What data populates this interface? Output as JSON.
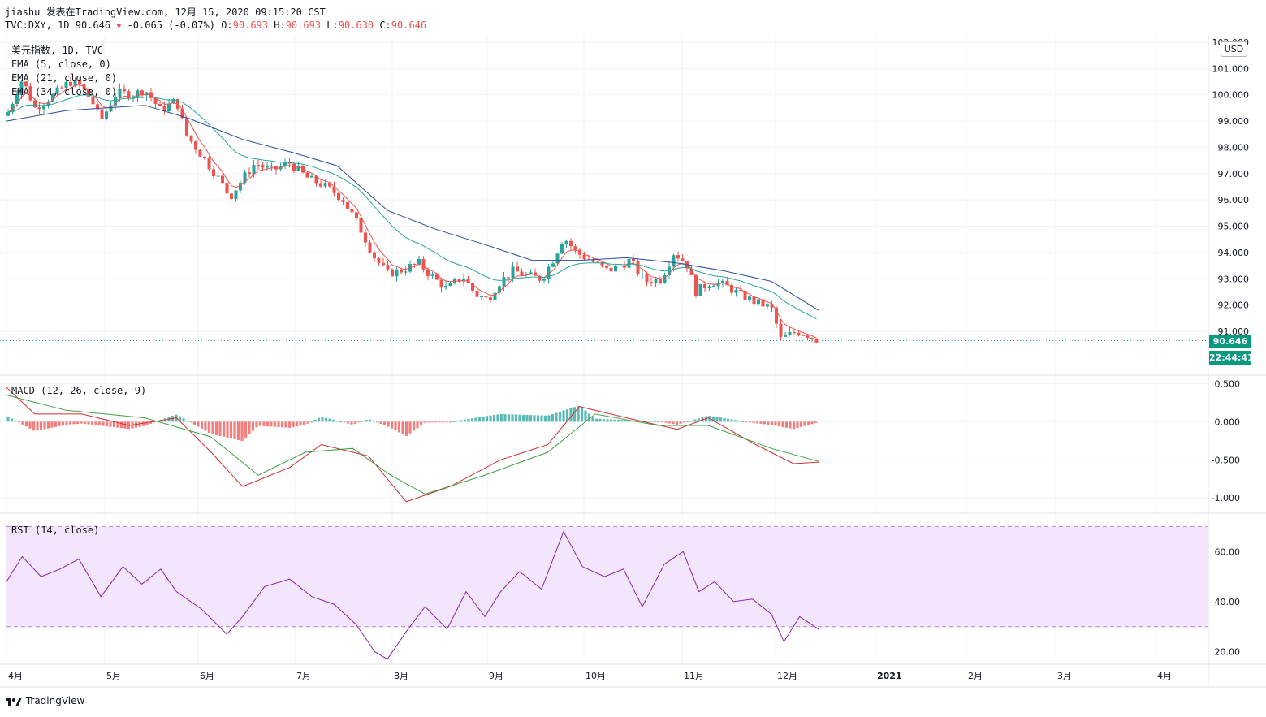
{
  "header": {
    "user": "jiashu",
    "published_on": "发表在TradingView.com, 12月 15, 2020 09:15:20 CST",
    "symbol": "TVC:DXY, 1D",
    "last": "90.646",
    "change": "-0.065 (-0.07%)",
    "o_label": "O:",
    "o": "90.693",
    "h_label": "H:",
    "h": "90.693",
    "l_label": "L:",
    "l": "90.630",
    "c_label": "C:",
    "c": "90.646"
  },
  "legend": {
    "title": "美元指数, 1D, TVC",
    "ema5": "EMA (5, close, 0)",
    "ema21": "EMA (21, close, 0)",
    "ema34": "EMA (34, close, 0)",
    "macd": "MACD (12, 26, close, 9)",
    "rsi": "RSI (14, close)"
  },
  "currency_button": "USD",
  "last_price_tag": "90.646",
  "countdown_tag": "22:44:41",
  "branding": "TradingView",
  "colors": {
    "up": "#26a69a",
    "down": "#ef5350",
    "ema5": "#ef5350",
    "ema21": "#26a69a",
    "ema34": "#2a4d9b",
    "macd_line": "#d32f2f",
    "signal_line": "#43a047",
    "rsi": "#8e24aa",
    "rsi_band": "#f3e5fc"
  },
  "chart_data": [
    {
      "type": "candlestick",
      "title": "美元指数, 1D, TVC",
      "x_tick_labels": [
        "4月",
        "5月",
        "6月",
        "7月",
        "8月",
        "9月",
        "10月",
        "11月",
        "12月",
        "2021",
        "2月",
        "3月",
        "4月"
      ],
      "y_tick_labels": [
        "102.000",
        "101.000",
        "100.000",
        "99.000",
        "98.000",
        "97.000",
        "96.000",
        "95.000",
        "94.000",
        "93.000",
        "92.000",
        "91.000"
      ],
      "ylim": [
        90.3,
        102.0
      ],
      "x_range": [
        "2020-04-01",
        "2020-12-15"
      ],
      "close_path": [
        [
          "2020-04-01",
          99.2
        ],
        [
          "2020-04-06",
          100.6
        ],
        [
          "2020-04-10",
          99.5
        ],
        [
          "2020-04-15",
          99.9
        ],
        [
          "2020-04-21",
          100.5
        ],
        [
          "2020-04-24",
          100.4
        ],
        [
          "2020-04-28",
          99.8
        ],
        [
          "2020-05-01",
          99.0
        ],
        [
          "2020-05-06",
          100.1
        ],
        [
          "2020-05-11",
          100.0
        ],
        [
          "2020-05-15",
          100.2
        ],
        [
          "2020-05-20",
          99.4
        ],
        [
          "2020-05-25",
          99.8
        ],
        [
          "2020-05-28",
          98.5
        ],
        [
          "2020-06-02",
          97.7
        ],
        [
          "2020-06-08",
          96.7
        ],
        [
          "2020-06-11",
          96.1
        ],
        [
          "2020-06-15",
          96.8
        ],
        [
          "2020-06-19",
          97.4
        ],
        [
          "2020-06-24",
          97.1
        ],
        [
          "2020-06-30",
          97.4
        ],
        [
          "2020-07-06",
          96.8
        ],
        [
          "2020-07-10",
          96.6
        ],
        [
          "2020-07-14",
          96.3
        ],
        [
          "2020-07-17",
          96.0
        ],
        [
          "2020-07-22",
          95.0
        ],
        [
          "2020-07-27",
          93.8
        ],
        [
          "2020-07-31",
          93.2
        ],
        [
          "2020-08-04",
          93.3
        ],
        [
          "2020-08-10",
          93.6
        ],
        [
          "2020-08-14",
          93.1
        ],
        [
          "2020-08-19",
          92.6
        ],
        [
          "2020-08-24",
          93.1
        ],
        [
          "2020-08-28",
          92.4
        ],
        [
          "2020-09-01",
          92.2
        ],
        [
          "2020-09-04",
          92.8
        ],
        [
          "2020-09-09",
          93.3
        ],
        [
          "2020-09-14",
          93.1
        ],
        [
          "2020-09-18",
          93.0
        ],
        [
          "2020-09-22",
          93.8
        ],
        [
          "2020-09-25",
          94.6
        ],
        [
          "2020-09-29",
          94.0
        ],
        [
          "2020-10-05",
          93.6
        ],
        [
          "2020-10-09",
          93.3
        ],
        [
          "2020-10-13",
          93.5
        ],
        [
          "2020-10-16",
          93.7
        ],
        [
          "2020-10-21",
          92.9
        ],
        [
          "2020-10-26",
          93.0
        ],
        [
          "2020-10-30",
          94.0
        ],
        [
          "2020-11-03",
          93.6
        ],
        [
          "2020-11-06",
          92.5
        ],
        [
          "2020-11-11",
          92.9
        ],
        [
          "2020-11-16",
          92.7
        ],
        [
          "2020-11-20",
          92.4
        ],
        [
          "2020-11-25",
          92.1
        ],
        [
          "2020-11-30",
          91.9
        ],
        [
          "2020-12-03",
          90.7
        ],
        [
          "2020-12-08",
          91.0
        ],
        [
          "2020-12-11",
          90.9
        ],
        [
          "2020-12-15",
          90.646
        ]
      ],
      "ema34_path": [
        [
          "2020-04-01",
          99.0
        ],
        [
          "2020-04-20",
          99.4
        ],
        [
          "2020-05-15",
          99.6
        ],
        [
          "2020-05-29",
          99.1
        ],
        [
          "2020-06-15",
          98.3
        ],
        [
          "2020-07-01",
          97.8
        ],
        [
          "2020-07-15",
          97.3
        ],
        [
          "2020-07-31",
          95.6
        ],
        [
          "2020-08-15",
          94.9
        ],
        [
          "2020-08-31",
          94.3
        ],
        [
          "2020-09-15",
          93.7
        ],
        [
          "2020-09-30",
          93.7
        ],
        [
          "2020-10-15",
          93.8
        ],
        [
          "2020-10-31",
          93.6
        ],
        [
          "2020-11-15",
          93.3
        ],
        [
          "2020-11-30",
          92.9
        ],
        [
          "2020-12-15",
          91.8
        ]
      ]
    },
    {
      "type": "line",
      "title": "MACD (12, 26, close, 9)",
      "y_tick_labels": [
        "0.500",
        "0.000",
        "-0.500",
        "-1.000"
      ],
      "ylim": [
        -1.2,
        0.6
      ],
      "series": [
        {
          "name": "MACD",
          "points": [
            [
              "2020-04-01",
              0.45
            ],
            [
              "2020-04-10",
              0.1
            ],
            [
              "2020-04-25",
              0.1
            ],
            [
              "2020-05-10",
              -0.05
            ],
            [
              "2020-05-25",
              0.05
            ],
            [
              "2020-06-05",
              -0.4
            ],
            [
              "2020-06-15",
              -0.85
            ],
            [
              "2020-06-30",
              -0.6
            ],
            [
              "2020-07-10",
              -0.3
            ],
            [
              "2020-07-25",
              -0.45
            ],
            [
              "2020-08-06",
              -1.05
            ],
            [
              "2020-08-20",
              -0.85
            ],
            [
              "2020-09-05",
              -0.5
            ],
            [
              "2020-09-20",
              -0.3
            ],
            [
              "2020-09-30",
              0.2
            ],
            [
              "2020-10-15",
              0.05
            ],
            [
              "2020-10-31",
              -0.1
            ],
            [
              "2020-11-10",
              0.05
            ],
            [
              "2020-11-25",
              -0.3
            ],
            [
              "2020-12-07",
              -0.55
            ],
            [
              "2020-12-15",
              -0.53
            ]
          ]
        },
        {
          "name": "Signal",
          "points": [
            [
              "2020-04-01",
              0.35
            ],
            [
              "2020-04-20",
              0.15
            ],
            [
              "2020-05-15",
              0.05
            ],
            [
              "2020-06-05",
              -0.2
            ],
            [
              "2020-06-20",
              -0.7
            ],
            [
              "2020-07-05",
              -0.4
            ],
            [
              "2020-07-20",
              -0.35
            ],
            [
              "2020-08-01",
              -0.7
            ],
            [
              "2020-08-12",
              -0.95
            ],
            [
              "2020-08-31",
              -0.7
            ],
            [
              "2020-09-20",
              -0.4
            ],
            [
              "2020-10-05",
              0.1
            ],
            [
              "2020-10-25",
              -0.05
            ],
            [
              "2020-11-10",
              -0.05
            ],
            [
              "2020-11-30",
              -0.35
            ],
            [
              "2020-12-15",
              -0.52
            ]
          ]
        }
      ]
    },
    {
      "type": "line",
      "title": "RSI (14, close)",
      "y_tick_labels": [
        "60.00",
        "40.00",
        "20.00"
      ],
      "ylim": [
        15,
        75
      ],
      "band": [
        30,
        70
      ],
      "series": [
        {
          "name": "RSI",
          "points": [
            [
              "2020-04-01",
              48
            ],
            [
              "2020-04-06",
              58
            ],
            [
              "2020-04-12",
              50
            ],
            [
              "2020-04-18",
              53
            ],
            [
              "2020-04-24",
              57
            ],
            [
              "2020-05-01",
              42
            ],
            [
              "2020-05-08",
              54
            ],
            [
              "2020-05-14",
              47
            ],
            [
              "2020-05-20",
              53
            ],
            [
              "2020-05-25",
              44
            ],
            [
              "2020-06-02",
              37
            ],
            [
              "2020-06-10",
              27
            ],
            [
              "2020-06-15",
              34
            ],
            [
              "2020-06-22",
              46
            ],
            [
              "2020-06-30",
              49
            ],
            [
              "2020-07-07",
              42
            ],
            [
              "2020-07-14",
              39
            ],
            [
              "2020-07-21",
              31
            ],
            [
              "2020-07-27",
              20
            ],
            [
              "2020-07-31",
              17
            ],
            [
              "2020-08-06",
              28
            ],
            [
              "2020-08-12",
              38
            ],
            [
              "2020-08-19",
              29
            ],
            [
              "2020-08-25",
              44
            ],
            [
              "2020-08-31",
              34
            ],
            [
              "2020-09-05",
              44
            ],
            [
              "2020-09-11",
              52
            ],
            [
              "2020-09-18",
              45
            ],
            [
              "2020-09-25",
              68
            ],
            [
              "2020-10-01",
              54
            ],
            [
              "2020-10-08",
              50
            ],
            [
              "2020-10-14",
              53
            ],
            [
              "2020-10-20",
              38
            ],
            [
              "2020-10-27",
              55
            ],
            [
              "2020-11-02",
              60
            ],
            [
              "2020-11-07",
              44
            ],
            [
              "2020-11-12",
              48
            ],
            [
              "2020-11-18",
              40
            ],
            [
              "2020-11-24",
              41
            ],
            [
              "2020-11-30",
              35
            ],
            [
              "2020-12-04",
              24
            ],
            [
              "2020-12-09",
              34
            ],
            [
              "2020-12-15",
              29
            ]
          ]
        }
      ]
    }
  ]
}
